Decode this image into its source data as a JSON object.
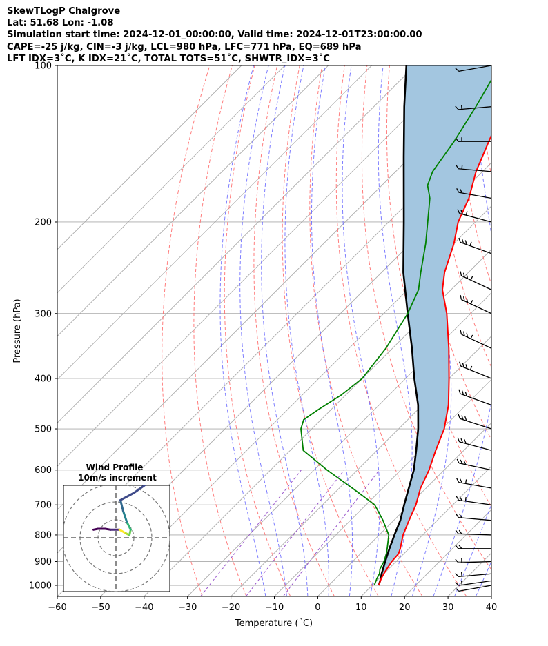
{
  "header": {
    "title": "SkewTLogP Chalgrove",
    "latlon": "Lat: 51.68   Lon: -1.08",
    "times": "Simulation start time: 2024-12-01_00:00:00, Valid time: 2024-12-01T23:00:00.00",
    "params": "CAPE=-25 j/kg, CIN=-3 j/kg, LCL=980 hPa, LFC=771 hPa, EQ=689 hPa",
    "indices": "LFT IDX=3˚C, K IDX=21˚C, TOTAL TOTS=51˚C, SHWTR_IDX=3˚C"
  },
  "chart_data": {
    "type": "line",
    "xlabel": "Temperature (˚C)",
    "ylabel": "Pressure (hPa)",
    "xlim": [
      -60,
      40
    ],
    "ylim": [
      1050,
      100
    ],
    "yscale": "log",
    "xticks": [
      -60,
      -50,
      -40,
      -30,
      -20,
      -10,
      0,
      10,
      20,
      30,
      40
    ],
    "yticks": [
      1000,
      900,
      800,
      700,
      600,
      500,
      400,
      300,
      200,
      100
    ],
    "skew_deg": 45,
    "grid": true,
    "colors": {
      "temperature": "#ff0000",
      "dewpoint": "#008000",
      "parcel": "#000000",
      "cape_fill": "#a3c6e0",
      "dry_adiabats": "#ff6666",
      "moist_adiabats": "#6666ff",
      "mixing_ratio": "#9955cc",
      "isotherms": "#aaaaaa"
    },
    "series": [
      {
        "key": "temperature",
        "p": [
          1000,
          970,
          950,
          930,
          900,
          870,
          850,
          800,
          750,
          700,
          650,
          600,
          550,
          500,
          450,
          400,
          350,
          300,
          270,
          250,
          220,
          200,
          180,
          160,
          140,
          120,
          110,
          100
        ],
        "t": [
          11.5,
          10.5,
          10.0,
          9.6,
          9.0,
          8.8,
          8.0,
          5.5,
          3.5,
          1.5,
          -1.3,
          -3.5,
          -6.5,
          -9.5,
          -14.0,
          -20.0,
          -27.0,
          -35.5,
          -42.0,
          -45.5,
          -50.0,
          -54.0,
          -57.0,
          -61.5,
          -65.5,
          -70.0,
          -71.5,
          -71.5
        ]
      },
      {
        "key": "dewpoint",
        "p": [
          1000,
          970,
          950,
          930,
          900,
          870,
          850,
          800,
          750,
          700,
          650,
          600,
          550,
          500,
          480,
          460,
          430,
          400,
          350,
          300,
          270,
          250,
          220,
          200,
          180,
          170,
          160,
          140,
          120,
          100
        ],
        "t": [
          10.5,
          9.5,
          9.0,
          8.0,
          7.2,
          6.0,
          5.0,
          2.2,
          -2.5,
          -8.0,
          -17.0,
          -27.0,
          -37.0,
          -42.5,
          -44.0,
          -43.0,
          -41.0,
          -40.0,
          -41.5,
          -44.5,
          -47.5,
          -51.0,
          -56.5,
          -61.0,
          -66.0,
          -69.5,
          -71.5,
          -73.5,
          -76.5,
          -80.5
        ]
      },
      {
        "key": "parcel",
        "p": [
          1000,
          980,
          950,
          900,
          850,
          800,
          750,
          700,
          650,
          600,
          550,
          500,
          450,
          400,
          350,
          300,
          250,
          200,
          150,
          120,
          100
        ],
        "t": [
          11.5,
          10.8,
          9.5,
          7.5,
          5.5,
          3.5,
          1.5,
          -1.2,
          -4.0,
          -7.0,
          -11.0,
          -15.5,
          -21.0,
          -28.0,
          -35.5,
          -44.5,
          -55.0,
          -66.5,
          -81.5,
          -93.0,
          -102.0
        ]
      }
    ],
    "wind_barbs": {
      "p": [
        1000,
        980,
        950,
        900,
        850,
        800,
        750,
        700,
        650,
        600,
        550,
        500,
        450,
        400,
        350,
        300,
        270,
        230,
        200,
        180,
        160,
        140,
        120,
        100
      ],
      "speed_kt": [
        10,
        15,
        15,
        15,
        20,
        20,
        20,
        25,
        25,
        30,
        30,
        30,
        30,
        35,
        35,
        35,
        35,
        35,
        25,
        20,
        15,
        15,
        15,
        10
      ],
      "dir_deg": [
        260,
        262,
        265,
        268,
        270,
        272,
        275,
        278,
        280,
        282,
        285,
        288,
        290,
        292,
        295,
        295,
        295,
        290,
        285,
        280,
        275,
        270,
        265,
        260
      ]
    },
    "hodograph": {
      "title": "Wind Profile",
      "subtitle": "10m/s increment",
      "rings_ms": [
        10,
        20,
        30
      ],
      "u": [
        -12.5,
        -10.0,
        -6.0,
        -3.0,
        2.0,
        5.5,
        7.5,
        8.2,
        6.0,
        4.0,
        2.5,
        10.0,
        17.0,
        20.5
      ],
      "v": [
        4.5,
        5.0,
        5.0,
        4.5,
        4.5,
        2.5,
        1.5,
        4.5,
        9.0,
        15.0,
        21.0,
        25.0,
        30.0,
        33.5
      ]
    }
  }
}
